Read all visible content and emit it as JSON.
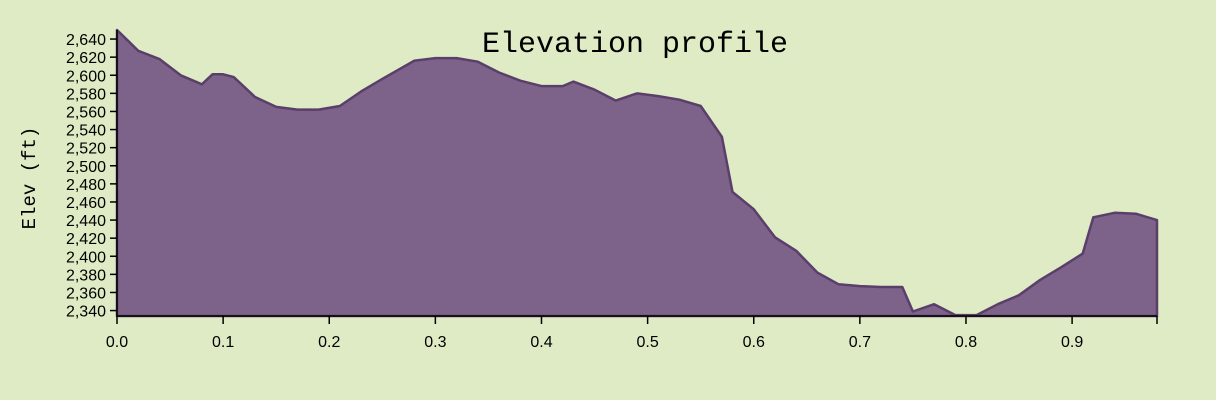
{
  "colors": {
    "background": "#dfebc4",
    "area_fill": "#7d6389",
    "area_stroke": "#5a3f6b",
    "axis": "#000000"
  },
  "chart_data": {
    "type": "area",
    "title": "Elevation profile",
    "xlabel": "",
    "ylabel": "Elev (ft)",
    "xlim": [
      0,
      0.98
    ],
    "ylim": [
      2334,
      2650
    ],
    "grid": false,
    "x_ticks": [
      0.0,
      0.1,
      0.2,
      0.3,
      0.4,
      0.5,
      0.6,
      0.7,
      0.8,
      0.9
    ],
    "x_tick_labels": [
      "0.0",
      "0.1",
      "0.2",
      "0.3",
      "0.4",
      "0.5",
      "0.6",
      "0.7",
      "0.8",
      "0.9"
    ],
    "y_ticks": [
      2340,
      2360,
      2380,
      2400,
      2420,
      2440,
      2460,
      2480,
      2500,
      2520,
      2540,
      2560,
      2580,
      2600,
      2620,
      2640
    ],
    "y_tick_labels": [
      "2,340",
      "2,360",
      "2,380",
      "2,400",
      "2,420",
      "2,440",
      "2,460",
      "2,480",
      "2,500",
      "2,520",
      "2,540",
      "2,560",
      "2,580",
      "2,600",
      "2,620",
      "2,640"
    ],
    "series": [
      {
        "name": "Elevation",
        "x": [
          0.0,
          0.02,
          0.04,
          0.06,
          0.08,
          0.09,
          0.1,
          0.11,
          0.13,
          0.15,
          0.17,
          0.19,
          0.21,
          0.23,
          0.25,
          0.28,
          0.3,
          0.32,
          0.34,
          0.36,
          0.38,
          0.4,
          0.42,
          0.43,
          0.45,
          0.47,
          0.49,
          0.51,
          0.53,
          0.55,
          0.57,
          0.58,
          0.6,
          0.62,
          0.64,
          0.66,
          0.68,
          0.7,
          0.72,
          0.74,
          0.75,
          0.77,
          0.79,
          0.81,
          0.83,
          0.85,
          0.87,
          0.89,
          0.91,
          0.92,
          0.94,
          0.96,
          0.98
        ],
        "y": [
          2651,
          2627,
          2618,
          2600,
          2590,
          2601,
          2601,
          2598,
          2576,
          2565,
          2562,
          2562,
          2566,
          2582,
          2596,
          2616,
          2619,
          2619,
          2615,
          2603,
          2594,
          2588,
          2588,
          2593,
          2584,
          2572,
          2580,
          2577,
          2573,
          2566,
          2532,
          2471,
          2452,
          2421,
          2406,
          2382,
          2369,
          2367,
          2366,
          2366,
          2339,
          2347,
          2335,
          2335,
          2347,
          2357,
          2374,
          2388,
          2403,
          2443,
          2448,
          2447,
          2440
        ]
      }
    ]
  }
}
